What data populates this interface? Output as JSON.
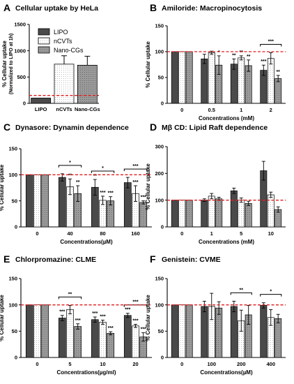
{
  "colors": {
    "LIPO": "#4a4a4a",
    "nCVTs": "#ffffff",
    "Nano-CGs": "#9a9a9a",
    "reference_line": "#e31a1c",
    "axis": "#000000"
  },
  "legend": {
    "entries": [
      "LIPO",
      "nCVTs",
      "Nano-CGs"
    ]
  },
  "chart_data": [
    {
      "id": "A",
      "letter": "A",
      "title": "Cellular uptake by HeLa",
      "type": "bar",
      "ylabel": "% Cellular uptake",
      "ylabel2": "(Normalized to LIPO at 1h)",
      "xlabel": "",
      "ylim": [
        0,
        1500
      ],
      "yticks": [
        "0",
        "500",
        "1000",
        "1500"
      ],
      "yticks_values": [
        0,
        500,
        1000,
        1500
      ],
      "categories": [
        "LIPO",
        "nCVTs",
        "Nano-CGs"
      ],
      "bars": [
        {
          "series": "LIPO",
          "value": 100,
          "err": 0
        },
        {
          "series": "nCVTs",
          "value": 745,
          "err": 160
        },
        {
          "series": "Nano-CGs",
          "value": 725,
          "err": 170
        }
      ],
      "reference": 150,
      "grid": false
    },
    {
      "id": "B",
      "letter": "B",
      "title": "Amiloride: Macropinocytosis",
      "type": "bar",
      "ylabel": "% Cellular uptake",
      "xlabel": "Concentrations (mM)",
      "ylim": [
        0,
        150
      ],
      "yticks": [
        "0",
        "50",
        "100",
        "150"
      ],
      "yticks_values": [
        0,
        50,
        100,
        150
      ],
      "categories": [
        "0",
        "0.5",
        "1",
        "2"
      ],
      "series": [
        {
          "name": "LIPO",
          "values": [
            100,
            86,
            76,
            64
          ],
          "err": [
            0,
            9,
            10,
            10
          ]
        },
        {
          "name": "nCVTs",
          "values": [
            100,
            98,
            88,
            87
          ],
          "err": [
            0,
            3,
            4,
            11
          ]
        },
        {
          "name": "Nano-CGs",
          "values": [
            100,
            74,
            73,
            48
          ],
          "err": [
            0,
            18,
            11,
            6
          ]
        }
      ],
      "stars": [
        {
          "group": 1,
          "bar": 2,
          "label": "*"
        },
        {
          "group": 2,
          "bar": 0,
          "label": "**"
        },
        {
          "group": 2,
          "bar": 1,
          "label": "**"
        },
        {
          "group": 2,
          "bar": 2,
          "label": "**"
        },
        {
          "group": 3,
          "bar": 0,
          "label": "***"
        },
        {
          "group": 3,
          "bar": 2,
          "label": "**"
        }
      ],
      "brackets": [
        {
          "from": [
            3,
            0
          ],
          "to": [
            3,
            2
          ],
          "label": "***"
        }
      ],
      "reference": 100,
      "grid": false
    },
    {
      "id": "C",
      "letter": "C",
      "title": "Dynasore: Dynamin dependence",
      "type": "bar",
      "ylabel": "% Cellular uptake",
      "xlabel": "Concentrations(µM)",
      "ylim": [
        0,
        150
      ],
      "yticks": [
        "0",
        "50",
        "100",
        "150"
      ],
      "yticks_values": [
        0,
        50,
        100,
        150
      ],
      "categories": [
        "0",
        "40",
        "80",
        "160"
      ],
      "series": [
        {
          "name": "LIPO",
          "values": [
            100,
            95,
            76,
            85
          ],
          "err": [
            0,
            7,
            15,
            10
          ]
        },
        {
          "name": "nCVTs",
          "values": [
            100,
            77,
            51,
            64
          ],
          "err": [
            0,
            15,
            8,
            15
          ]
        },
        {
          "name": "Nano-CGs",
          "values": [
            100,
            64,
            50,
            47
          ],
          "err": [
            0,
            15,
            8,
            3
          ]
        }
      ],
      "stars": [
        {
          "group": 1,
          "bar": 1,
          "label": "**"
        },
        {
          "group": 1,
          "bar": 2,
          "label": "**"
        },
        {
          "group": 2,
          "bar": 0,
          "label": "**"
        },
        {
          "group": 2,
          "bar": 1,
          "label": "***"
        },
        {
          "group": 2,
          "bar": 2,
          "label": "***"
        },
        {
          "group": 3,
          "bar": 1,
          "label": "***"
        },
        {
          "group": 3,
          "bar": 2,
          "label": "***"
        }
      ],
      "brackets": [
        {
          "from": [
            1,
            0
          ],
          "to": [
            1,
            2
          ],
          "label": "*"
        },
        {
          "from": [
            2,
            0
          ],
          "to": [
            2,
            2
          ],
          "label": "*"
        },
        {
          "from": [
            3,
            0
          ],
          "to": [
            3,
            2
          ],
          "label": "***"
        }
      ],
      "reference": 100,
      "grid": false
    },
    {
      "id": "D",
      "letter": "D",
      "title": "Mβ CD: Lipid Raft dependence",
      "type": "bar",
      "ylabel": "% Cellular uptake",
      "xlabel": "Concentrations (mM)",
      "ylim": [
        0,
        300
      ],
      "yticks": [
        "0",
        "100",
        "200",
        "300"
      ],
      "yticks_values": [
        0,
        100,
        200,
        300
      ],
      "categories": [
        "0",
        "1",
        "5",
        "10"
      ],
      "series": [
        {
          "name": "LIPO",
          "values": [
            100,
            100,
            135,
            210
          ],
          "err": [
            0,
            5,
            10,
            35
          ]
        },
        {
          "name": "nCVTs",
          "values": [
            100,
            115,
            100,
            120
          ],
          "err": [
            0,
            10,
            8,
            10
          ]
        },
        {
          "name": "Nano-CGs",
          "values": [
            100,
            105,
            88,
            65
          ],
          "err": [
            0,
            6,
            8,
            10
          ]
        }
      ],
      "stars": [],
      "brackets": [],
      "reference": 100,
      "grid": false
    },
    {
      "id": "E",
      "letter": "E",
      "title": "Chlorpromazine: CLME",
      "type": "bar",
      "ylabel": "% Cellular uptake",
      "xlabel": "Concentrations(µg/ml)",
      "ylim": [
        0,
        150
      ],
      "yticks": [
        "0",
        "50",
        "100",
        "150"
      ],
      "yticks_values": [
        0,
        50,
        100,
        150
      ],
      "categories": [
        "0",
        "5",
        "10",
        "20"
      ],
      "series": [
        {
          "name": "LIPO",
          "values": [
            100,
            75,
            72,
            80
          ],
          "err": [
            0,
            5,
            5,
            4
          ]
        },
        {
          "name": "nCVTs",
          "values": [
            100,
            91,
            67,
            60
          ],
          "err": [
            0,
            8,
            4,
            3
          ]
        },
        {
          "name": "Nano-CGs",
          "values": [
            100,
            59,
            46,
            39
          ],
          "err": [
            0,
            5,
            3,
            8
          ]
        }
      ],
      "stars": [
        {
          "group": 1,
          "bar": 0,
          "label": "***"
        },
        {
          "group": 1,
          "bar": 2,
          "label": "***"
        },
        {
          "group": 2,
          "bar": 0,
          "label": "***"
        },
        {
          "group": 2,
          "bar": 1,
          "label": "***"
        },
        {
          "group": 2,
          "bar": 2,
          "label": "***"
        },
        {
          "group": 3,
          "bar": 0,
          "label": "***"
        },
        {
          "group": 3,
          "bar": 1,
          "label": "***"
        },
        {
          "group": 3,
          "bar": 2,
          "label": "***"
        }
      ],
      "brackets": [
        {
          "from": [
            1,
            0
          ],
          "to": [
            1,
            2
          ],
          "label": "**"
        },
        {
          "from": [
            3,
            0
          ],
          "to": [
            3,
            2
          ],
          "label": "***"
        }
      ],
      "reference": 100,
      "grid": false
    },
    {
      "id": "F",
      "letter": "F",
      "title": "Genistein: CVME",
      "type": "bar",
      "ylabel": "% Cellular uptake",
      "xlabel": "Concentrations(µM)",
      "ylim": [
        0,
        150
      ],
      "yticks": [
        "0",
        "50",
        "100",
        "150"
      ],
      "yticks_values": [
        0,
        50,
        100,
        150
      ],
      "categories": [
        "0",
        "100",
        "200",
        "400"
      ],
      "series": [
        {
          "name": "LIPO",
          "values": [
            100,
            97,
            97,
            99
          ],
          "err": [
            0,
            10,
            10,
            5
          ]
        },
        {
          "name": "nCVTs",
          "values": [
            100,
            97,
            70,
            76
          ],
          "err": [
            0,
            25,
            20,
            15
          ]
        },
        {
          "name": "Nano-CGs",
          "values": [
            100,
            94,
            81,
            74
          ],
          "err": [
            0,
            12,
            18,
            8
          ]
        }
      ],
      "stars": [],
      "brackets": [
        {
          "from": [
            2,
            0
          ],
          "to": [
            2,
            2
          ],
          "label": "**"
        },
        {
          "from": [
            3,
            0
          ],
          "to": [
            3,
            2
          ],
          "label": "*"
        }
      ],
      "reference": 100,
      "grid": false
    }
  ]
}
